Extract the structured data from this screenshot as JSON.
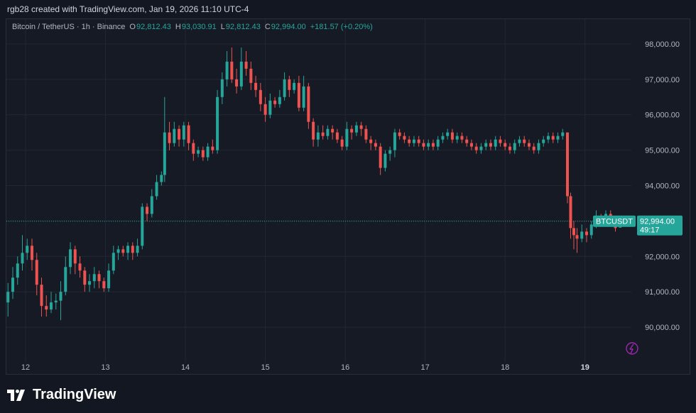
{
  "header": {
    "text": "rgb28 created with TradingView.com, Jan 19, 2026 11:10 UTC-4"
  },
  "legend": {
    "symbol": "Bitcoin / TetherUS · 1h · Binance",
    "open_label": "O",
    "open": "92,812.43",
    "high_label": "H",
    "high": "93,030.91",
    "low_label": "L",
    "low": "92,812.43",
    "close_label": "C",
    "close": "92,994.00",
    "change": "+181.57 (+0.20%)"
  },
  "price_tag": {
    "symbol": "BTCUSDT",
    "price": "92,994.00",
    "countdown": "49:17"
  },
  "footer": {
    "brand": "TradingView"
  },
  "colors": {
    "up": "#26a69a",
    "down": "#ef5350",
    "background": "#161a25",
    "grid": "#232733",
    "text": "#b2b5be",
    "accent": "#9c27b0"
  },
  "chart_data": {
    "type": "candlestick",
    "title": "Bitcoin / TetherUS · 1h · Binance",
    "interval": "1h",
    "xlabel": "",
    "ylabel": "",
    "ylim": [
      89000,
      98700
    ],
    "y_ticks": [
      90000,
      91000,
      92000,
      93000,
      94000,
      95000,
      96000,
      97000,
      98000
    ],
    "y_tick_labels": [
      "90,000.00",
      "91,000.00",
      "92,000.00",
      "93,000.00",
      "94,000.00",
      "95,000.00",
      "96,000.00",
      "97,000.00",
      "98,000.00"
    ],
    "x_ticks": [
      12,
      13,
      14,
      15,
      16,
      17,
      18,
      19
    ],
    "x_tick_labels": [
      "12",
      "13",
      "14",
      "15",
      "16",
      "17",
      "18",
      "19"
    ],
    "x_range_days": [
      11.76,
      19.58
    ],
    "last_price": 92994.0,
    "grid": true,
    "series": [
      {
        "t": 11.78,
        "o": 90700,
        "c": 91000,
        "h": 91250,
        "l": 90300
      },
      {
        "t": 11.84,
        "o": 91000,
        "c": 91400,
        "h": 91700,
        "l": 90800
      },
      {
        "t": 11.9,
        "o": 91400,
        "c": 91800,
        "h": 92000,
        "l": 91200
      },
      {
        "t": 11.96,
        "o": 91800,
        "c": 92100,
        "h": 92600,
        "l": 91600
      },
      {
        "t": 12.02,
        "o": 92100,
        "c": 92300,
        "h": 92500,
        "l": 91900
      },
      {
        "t": 12.08,
        "o": 92300,
        "c": 91900,
        "h": 92500,
        "l": 91600
      },
      {
        "t": 12.14,
        "o": 91900,
        "c": 91200,
        "h": 92100,
        "l": 90900
      },
      {
        "t": 12.2,
        "o": 91200,
        "c": 90600,
        "h": 91400,
        "l": 90300
      },
      {
        "t": 12.26,
        "o": 90600,
        "c": 90500,
        "h": 90900,
        "l": 90300
      },
      {
        "t": 12.32,
        "o": 90500,
        "c": 90700,
        "h": 91000,
        "l": 90400
      },
      {
        "t": 12.38,
        "o": 90700,
        "c": 90750,
        "h": 90950,
        "l": 90500
      },
      {
        "t": 12.44,
        "o": 90750,
        "c": 91000,
        "h": 91300,
        "l": 90200
      },
      {
        "t": 12.5,
        "o": 91000,
        "c": 91700,
        "h": 92000,
        "l": 90900
      },
      {
        "t": 12.56,
        "o": 91700,
        "c": 92200,
        "h": 92400,
        "l": 91500
      },
      {
        "t": 12.62,
        "o": 92200,
        "c": 91800,
        "h": 92300,
        "l": 91500
      },
      {
        "t": 12.68,
        "o": 91800,
        "c": 91600,
        "h": 92000,
        "l": 91400
      },
      {
        "t": 12.74,
        "o": 91600,
        "c": 91200,
        "h": 91700,
        "l": 91000
      },
      {
        "t": 12.8,
        "o": 91200,
        "c": 91300,
        "h": 91500,
        "l": 91000
      },
      {
        "t": 12.86,
        "o": 91300,
        "c": 91500,
        "h": 91700,
        "l": 91100
      },
      {
        "t": 12.92,
        "o": 91500,
        "c": 91300,
        "h": 91600,
        "l": 91100
      },
      {
        "t": 12.98,
        "o": 91300,
        "c": 91100,
        "h": 91400,
        "l": 91000
      },
      {
        "t": 13.04,
        "o": 91100,
        "c": 91600,
        "h": 91800,
        "l": 91000
      },
      {
        "t": 13.1,
        "o": 91600,
        "c": 92100,
        "h": 92300,
        "l": 91500
      },
      {
        "t": 13.16,
        "o": 92100,
        "c": 92200,
        "h": 92300,
        "l": 91900
      },
      {
        "t": 13.22,
        "o": 92200,
        "c": 92100,
        "h": 92300,
        "l": 92000
      },
      {
        "t": 13.28,
        "o": 92100,
        "c": 92300,
        "h": 92400,
        "l": 91900
      },
      {
        "t": 13.34,
        "o": 92300,
        "c": 92100,
        "h": 92400,
        "l": 91900
      },
      {
        "t": 13.4,
        "o": 92100,
        "c": 92300,
        "h": 92500,
        "l": 92000
      },
      {
        "t": 13.46,
        "o": 92300,
        "c": 93400,
        "h": 93500,
        "l": 92200
      },
      {
        "t": 13.52,
        "o": 93400,
        "c": 93200,
        "h": 93500,
        "l": 93000
      },
      {
        "t": 13.58,
        "o": 93200,
        "c": 93700,
        "h": 93900,
        "l": 93100
      },
      {
        "t": 13.64,
        "o": 93700,
        "c": 94100,
        "h": 94300,
        "l": 93600
      },
      {
        "t": 13.7,
        "o": 94100,
        "c": 94300,
        "h": 94400,
        "l": 94000
      },
      {
        "t": 13.74,
        "o": 94300,
        "c": 95500,
        "h": 96500,
        "l": 94100
      },
      {
        "t": 13.8,
        "o": 95500,
        "c": 95200,
        "h": 95800,
        "l": 95000
      },
      {
        "t": 13.86,
        "o": 95200,
        "c": 95600,
        "h": 95800,
        "l": 95100
      },
      {
        "t": 13.92,
        "o": 95600,
        "c": 95300,
        "h": 95700,
        "l": 95100
      },
      {
        "t": 13.98,
        "o": 95300,
        "c": 95700,
        "h": 95800,
        "l": 95100
      },
      {
        "t": 14.04,
        "o": 95700,
        "c": 95200,
        "h": 95800,
        "l": 95000
      },
      {
        "t": 14.1,
        "o": 95200,
        "c": 94900,
        "h": 95300,
        "l": 94700
      },
      {
        "t": 14.16,
        "o": 94900,
        "c": 95000,
        "h": 95100,
        "l": 94800
      },
      {
        "t": 14.22,
        "o": 95000,
        "c": 94800,
        "h": 95100,
        "l": 94700
      },
      {
        "t": 14.28,
        "o": 94800,
        "c": 95100,
        "h": 95200,
        "l": 94700
      },
      {
        "t": 14.34,
        "o": 95100,
        "c": 95000,
        "h": 95300,
        "l": 94900
      },
      {
        "t": 14.4,
        "o": 95000,
        "c": 96500,
        "h": 96700,
        "l": 94900
      },
      {
        "t": 14.46,
        "o": 96500,
        "c": 97000,
        "h": 97200,
        "l": 96300
      },
      {
        "t": 14.52,
        "o": 97000,
        "c": 97500,
        "h": 97800,
        "l": 96800
      },
      {
        "t": 14.58,
        "o": 97500,
        "c": 97000,
        "h": 97900,
        "l": 96900
      },
      {
        "t": 14.64,
        "o": 97000,
        "c": 96800,
        "h": 97300,
        "l": 96600
      },
      {
        "t": 14.7,
        "o": 96800,
        "c": 97500,
        "h": 97900,
        "l": 96700
      },
      {
        "t": 14.76,
        "o": 97500,
        "c": 97300,
        "h": 97800,
        "l": 97100
      },
      {
        "t": 14.82,
        "o": 97300,
        "c": 96900,
        "h": 97500,
        "l": 96700
      },
      {
        "t": 14.88,
        "o": 96900,
        "c": 96700,
        "h": 97100,
        "l": 96500
      },
      {
        "t": 14.94,
        "o": 96700,
        "c": 96300,
        "h": 96900,
        "l": 96100
      },
      {
        "t": 15.0,
        "o": 96300,
        "c": 96000,
        "h": 96500,
        "l": 95800
      },
      {
        "t": 15.06,
        "o": 96000,
        "c": 96400,
        "h": 96600,
        "l": 95900
      },
      {
        "t": 15.12,
        "o": 96400,
        "c": 96300,
        "h": 96500,
        "l": 96200
      },
      {
        "t": 15.18,
        "o": 96300,
        "c": 96500,
        "h": 96700,
        "l": 96200
      },
      {
        "t": 15.24,
        "o": 96500,
        "c": 97000,
        "h": 97200,
        "l": 96400
      },
      {
        "t": 15.3,
        "o": 97000,
        "c": 96700,
        "h": 97100,
        "l": 96500
      },
      {
        "t": 15.36,
        "o": 96700,
        "c": 96900,
        "h": 97000,
        "l": 96600
      },
      {
        "t": 15.42,
        "o": 96900,
        "c": 96200,
        "h": 97100,
        "l": 96100
      },
      {
        "t": 15.48,
        "o": 96200,
        "c": 96800,
        "h": 97100,
        "l": 96100
      },
      {
        "t": 15.54,
        "o": 96800,
        "c": 95800,
        "h": 96900,
        "l": 95600
      },
      {
        "t": 15.6,
        "o": 95800,
        "c": 95300,
        "h": 95900,
        "l": 95100
      },
      {
        "t": 15.66,
        "o": 95300,
        "c": 95500,
        "h": 95700,
        "l": 95100
      },
      {
        "t": 15.72,
        "o": 95500,
        "c": 95400,
        "h": 95700,
        "l": 95300
      },
      {
        "t": 15.78,
        "o": 95400,
        "c": 95600,
        "h": 95700,
        "l": 95300
      },
      {
        "t": 15.84,
        "o": 95600,
        "c": 95500,
        "h": 95700,
        "l": 95300
      },
      {
        "t": 15.9,
        "o": 95500,
        "c": 95300,
        "h": 95600,
        "l": 95200
      },
      {
        "t": 15.96,
        "o": 95300,
        "c": 95100,
        "h": 95400,
        "l": 95000
      },
      {
        "t": 16.02,
        "o": 95100,
        "c": 95600,
        "h": 95800,
        "l": 95000
      },
      {
        "t": 16.08,
        "o": 95600,
        "c": 95500,
        "h": 95700,
        "l": 95300
      },
      {
        "t": 16.14,
        "o": 95500,
        "c": 95700,
        "h": 95800,
        "l": 95400
      },
      {
        "t": 16.2,
        "o": 95700,
        "c": 95600,
        "h": 95800,
        "l": 95400
      },
      {
        "t": 16.26,
        "o": 95600,
        "c": 95300,
        "h": 95700,
        "l": 95200
      },
      {
        "t": 16.32,
        "o": 95300,
        "c": 95200,
        "h": 95400,
        "l": 95000
      },
      {
        "t": 16.38,
        "o": 95200,
        "c": 95100,
        "h": 95300,
        "l": 95000
      },
      {
        "t": 16.44,
        "o": 95100,
        "c": 94500,
        "h": 95200,
        "l": 94300
      },
      {
        "t": 16.5,
        "o": 94500,
        "c": 94900,
        "h": 95000,
        "l": 94400
      },
      {
        "t": 16.56,
        "o": 94900,
        "c": 95000,
        "h": 95100,
        "l": 94700
      },
      {
        "t": 16.62,
        "o": 95000,
        "c": 95500,
        "h": 95600,
        "l": 94800
      },
      {
        "t": 16.68,
        "o": 95500,
        "c": 95400,
        "h": 95600,
        "l": 95300
      },
      {
        "t": 16.74,
        "o": 95400,
        "c": 95300,
        "h": 95500,
        "l": 95200
      },
      {
        "t": 16.8,
        "o": 95300,
        "c": 95200,
        "h": 95400,
        "l": 95100
      },
      {
        "t": 16.86,
        "o": 95200,
        "c": 95300,
        "h": 95400,
        "l": 95100
      },
      {
        "t": 16.92,
        "o": 95300,
        "c": 95200,
        "h": 95400,
        "l": 95100
      },
      {
        "t": 16.98,
        "o": 95200,
        "c": 95100,
        "h": 95300,
        "l": 95000
      },
      {
        "t": 17.04,
        "o": 95100,
        "c": 95200,
        "h": 95300,
        "l": 95000
      },
      {
        "t": 17.1,
        "o": 95200,
        "c": 95100,
        "h": 95300,
        "l": 95000
      },
      {
        "t": 17.16,
        "o": 95100,
        "c": 95300,
        "h": 95400,
        "l": 95000
      },
      {
        "t": 17.22,
        "o": 95300,
        "c": 95400,
        "h": 95500,
        "l": 95200
      },
      {
        "t": 17.28,
        "o": 95400,
        "c": 95500,
        "h": 95600,
        "l": 95300
      },
      {
        "t": 17.34,
        "o": 95500,
        "c": 95300,
        "h": 95600,
        "l": 95200
      },
      {
        "t": 17.4,
        "o": 95300,
        "c": 95400,
        "h": 95500,
        "l": 95200
      },
      {
        "t": 17.46,
        "o": 95400,
        "c": 95300,
        "h": 95500,
        "l": 95200
      },
      {
        "t": 17.52,
        "o": 95300,
        "c": 95200,
        "h": 95400,
        "l": 95100
      },
      {
        "t": 17.58,
        "o": 95200,
        "c": 95100,
        "h": 95300,
        "l": 95000
      },
      {
        "t": 17.64,
        "o": 95100,
        "c": 95000,
        "h": 95200,
        "l": 94900
      },
      {
        "t": 17.7,
        "o": 95000,
        "c": 95100,
        "h": 95200,
        "l": 94900
      },
      {
        "t": 17.76,
        "o": 95100,
        "c": 95200,
        "h": 95300,
        "l": 95000
      },
      {
        "t": 17.82,
        "o": 95200,
        "c": 95100,
        "h": 95300,
        "l": 95000
      },
      {
        "t": 17.88,
        "o": 95100,
        "c": 95300,
        "h": 95400,
        "l": 95000
      },
      {
        "t": 17.94,
        "o": 95300,
        "c": 95200,
        "h": 95400,
        "l": 95100
      },
      {
        "t": 18.0,
        "o": 95200,
        "c": 95100,
        "h": 95300,
        "l": 95000
      },
      {
        "t": 18.06,
        "o": 95100,
        "c": 95000,
        "h": 95200,
        "l": 94900
      },
      {
        "t": 18.12,
        "o": 95000,
        "c": 95200,
        "h": 95300,
        "l": 94900
      },
      {
        "t": 18.18,
        "o": 95200,
        "c": 95300,
        "h": 95400,
        "l": 95100
      },
      {
        "t": 18.24,
        "o": 95300,
        "c": 95200,
        "h": 95400,
        "l": 95100
      },
      {
        "t": 18.3,
        "o": 95200,
        "c": 95100,
        "h": 95300,
        "l": 95000
      },
      {
        "t": 18.36,
        "o": 95100,
        "c": 95000,
        "h": 95200,
        "l": 94900
      },
      {
        "t": 18.42,
        "o": 95000,
        "c": 95200,
        "h": 95300,
        "l": 94900
      },
      {
        "t": 18.48,
        "o": 95200,
        "c": 95300,
        "h": 95400,
        "l": 95100
      },
      {
        "t": 18.54,
        "o": 95300,
        "c": 95400,
        "h": 95500,
        "l": 95200
      },
      {
        "t": 18.6,
        "o": 95400,
        "c": 95300,
        "h": 95500,
        "l": 95200
      },
      {
        "t": 18.66,
        "o": 95300,
        "c": 95400,
        "h": 95500,
        "l": 95200
      },
      {
        "t": 18.72,
        "o": 95400,
        "c": 95500,
        "h": 95600,
        "l": 95300
      },
      {
        "t": 18.78,
        "o": 95500,
        "c": 93700,
        "h": 95500,
        "l": 93500
      },
      {
        "t": 18.82,
        "o": 93700,
        "c": 92800,
        "h": 93800,
        "l": 92500
      },
      {
        "t": 18.86,
        "o": 92800,
        "c": 92600,
        "h": 93000,
        "l": 92200
      },
      {
        "t": 18.9,
        "o": 92600,
        "c": 92500,
        "h": 92800,
        "l": 92100
      },
      {
        "t": 18.96,
        "o": 92500,
        "c": 92700,
        "h": 92900,
        "l": 92400
      },
      {
        "t": 19.02,
        "o": 92700,
        "c": 92600,
        "h": 92800,
        "l": 92400
      },
      {
        "t": 19.08,
        "o": 92600,
        "c": 92900,
        "h": 93000,
        "l": 92500
      },
      {
        "t": 19.14,
        "o": 92900,
        "c": 93100,
        "h": 93300,
        "l": 92800
      },
      {
        "t": 19.2,
        "o": 93100,
        "c": 93000,
        "h": 93200,
        "l": 92900
      },
      {
        "t": 19.26,
        "o": 93000,
        "c": 93200,
        "h": 93300,
        "l": 92900
      },
      {
        "t": 19.32,
        "o": 93200,
        "c": 93000,
        "h": 93300,
        "l": 92900
      },
      {
        "t": 19.38,
        "o": 93000,
        "c": 92800,
        "h": 93100,
        "l": 92700
      },
      {
        "t": 19.44,
        "o": 92812.43,
        "c": 92994,
        "h": 93030.91,
        "l": 92812.43
      }
    ]
  }
}
